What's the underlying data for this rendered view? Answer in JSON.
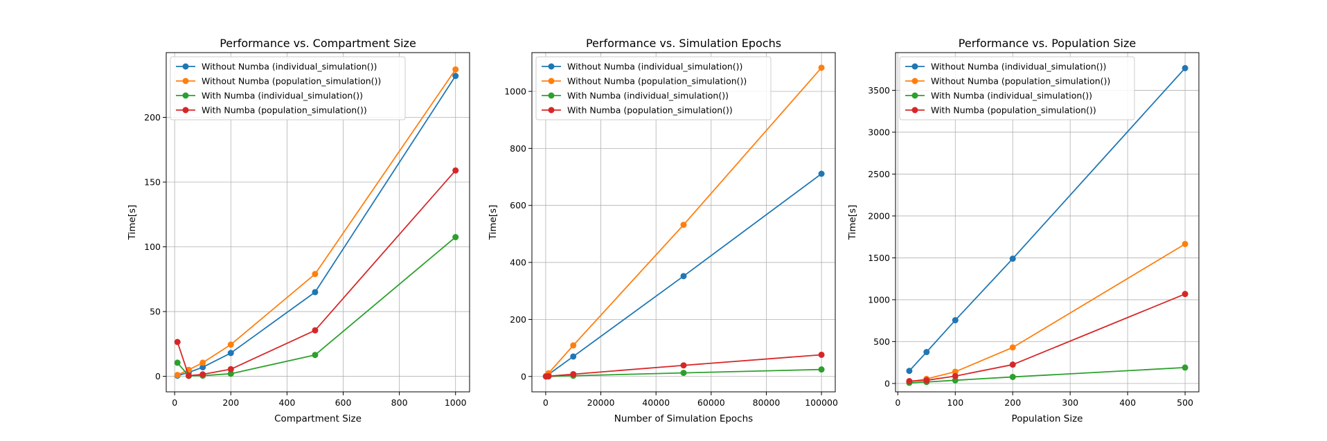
{
  "chart_data": [
    {
      "type": "line",
      "title": "Performance vs. Compartment Size",
      "xlabel": "Compartment Size",
      "ylabel": "Time[s]",
      "xlim": [
        -30,
        1050
      ],
      "ylim": [
        -12,
        250
      ],
      "xticks": [
        0,
        200,
        400,
        600,
        800,
        1000
      ],
      "yticks": [
        0,
        50,
        100,
        150,
        200
      ],
      "grid": true,
      "legend": "upper-left",
      "x": [
        10,
        50,
        100,
        200,
        500,
        1000
      ],
      "series": [
        {
          "name": "Without Numba (individual_simulation())",
          "color": "#1f77b4",
          "values": [
            0.5,
            3,
            7,
            18,
            65,
            232
          ]
        },
        {
          "name": "Without Numba (population_simulation())",
          "color": "#ff7f0e",
          "values": [
            1,
            5,
            10.5,
            24.5,
            79,
            237
          ]
        },
        {
          "name": "With Numba (individual_simulation())",
          "color": "#2ca02c",
          "values": [
            10.5,
            0.3,
            0.5,
            2,
            16.5,
            107.5
          ]
        },
        {
          "name": "With Numba (population_simulation())",
          "color": "#d62728",
          "values": [
            26.5,
            0.5,
            1.5,
            5.5,
            35.5,
            159
          ]
        }
      ]
    },
    {
      "type": "line",
      "title": "Performance vs. Simulation Epochs",
      "xlabel": "Number of Simulation Epochs",
      "ylabel": "Time[s]",
      "xlim": [
        -5000,
        105000
      ],
      "ylim": [
        -54,
        1136
      ],
      "xticks": [
        0,
        20000,
        40000,
        60000,
        80000,
        100000
      ],
      "yticks": [
        0,
        200,
        400,
        600,
        800,
        1000
      ],
      "grid": true,
      "legend": "upper-left",
      "x": [
        100,
        1000,
        10000,
        50000,
        100000
      ],
      "series": [
        {
          "name": "Without Numba (individual_simulation())",
          "color": "#1f77b4",
          "values": [
            0.7,
            7,
            70,
            352,
            711
          ]
        },
        {
          "name": "Without Numba (population_simulation())",
          "color": "#ff7f0e",
          "values": [
            1.1,
            11,
            109,
            532,
            1083
          ]
        },
        {
          "name": "With Numba (individual_simulation())",
          "color": "#2ca02c",
          "values": [
            0.02,
            0.2,
            2.5,
            12.5,
            24.5
          ]
        },
        {
          "name": "With Numba (population_simulation())",
          "color": "#d62728",
          "values": [
            0.1,
            0.8,
            8,
            39,
            76
          ]
        }
      ]
    },
    {
      "type": "line",
      "title": "Performance vs. Population Size",
      "xlabel": "Population Size",
      "ylabel": "Time[s]",
      "xlim": [
        -4,
        524
      ],
      "ylim": [
        -100,
        3950
      ],
      "xticks": [
        0,
        100,
        200,
        300,
        400,
        500
      ],
      "yticks": [
        0,
        500,
        1000,
        1500,
        2000,
        2500,
        3000,
        3500
      ],
      "grid": true,
      "legend": "upper-left",
      "x": [
        20,
        50,
        100,
        200,
        500
      ],
      "series": [
        {
          "name": "Without Numba (individual_simulation())",
          "color": "#1f77b4",
          "values": [
            150,
            375,
            755,
            1490,
            3765
          ]
        },
        {
          "name": "Without Numba (population_simulation())",
          "color": "#ff7f0e",
          "values": [
            20,
            55,
            140,
            430,
            1665
          ]
        },
        {
          "name": "With Numba (individual_simulation())",
          "color": "#2ca02c",
          "values": [
            8,
            18,
            38,
            78,
            190
          ]
        },
        {
          "name": "With Numba (population_simulation())",
          "color": "#d62728",
          "values": [
            28,
            38,
            88,
            225,
            1068
          ]
        }
      ]
    }
  ]
}
